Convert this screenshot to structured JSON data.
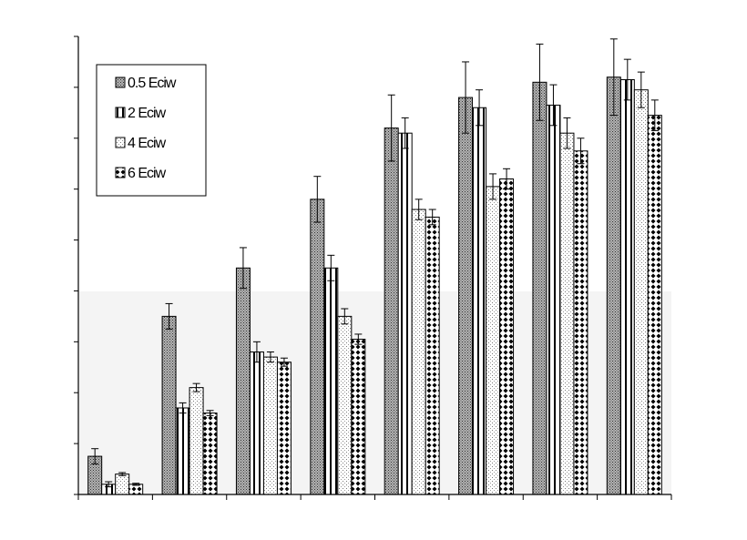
{
  "chart_data": {
    "type": "bar",
    "title": "",
    "xlabel": "",
    "ylabel": "",
    "ylim": [
      0,
      9
    ],
    "grid": false,
    "legend_position": "top-left",
    "categories": [
      "",
      "",
      "",
      "",
      "",
      "",
      "",
      ""
    ],
    "series": [
      {
        "name": "0.5 Eciw",
        "pattern": "dense-dots",
        "values": [
          0.75,
          3.5,
          4.45,
          5.8,
          7.2,
          7.8,
          8.1,
          8.2
        ],
        "errors": [
          0.15,
          0.25,
          0.4,
          0.45,
          0.65,
          0.7,
          0.75,
          0.75
        ]
      },
      {
        "name": "2 Eciw",
        "pattern": "vertical-stripes",
        "values": [
          0.2,
          1.7,
          2.8,
          4.45,
          7.1,
          7.6,
          7.65,
          8.15
        ],
        "errors": [
          0.05,
          0.1,
          0.2,
          0.25,
          0.3,
          0.35,
          0.4,
          0.4
        ]
      },
      {
        "name": "4 Eciw",
        "pattern": "sparse-dots",
        "values": [
          0.4,
          2.1,
          2.7,
          3.5,
          5.6,
          6.05,
          7.1,
          7.95
        ],
        "errors": [
          0.03,
          0.08,
          0.1,
          0.15,
          0.2,
          0.25,
          0.3,
          0.35
        ]
      },
      {
        "name": "6 Eciw",
        "pattern": "diamond-checks",
        "values": [
          0.2,
          1.6,
          2.6,
          3.05,
          5.45,
          6.2,
          6.75,
          7.45
        ],
        "errors": [
          0.02,
          0.05,
          0.08,
          0.1,
          0.15,
          0.2,
          0.25,
          0.3
        ]
      }
    ]
  }
}
